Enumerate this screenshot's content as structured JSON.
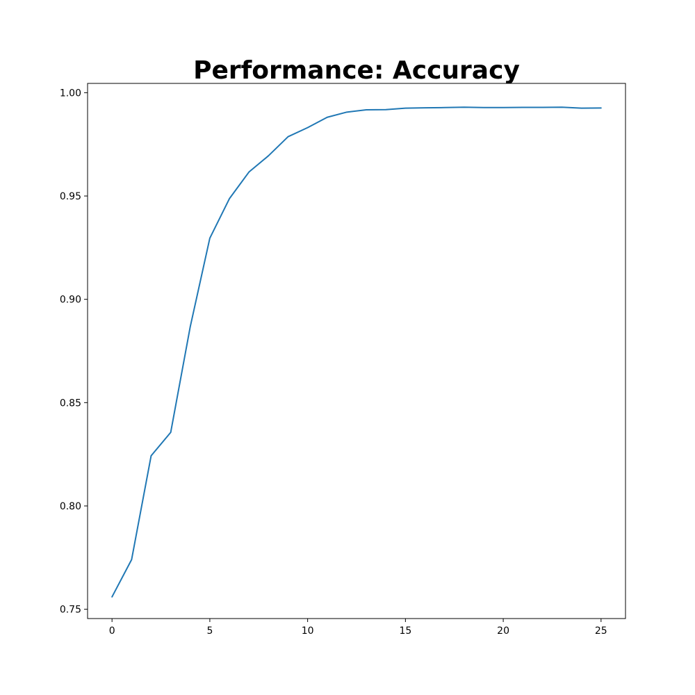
{
  "chart_data": {
    "type": "line",
    "title": "Performance: Accuracy",
    "xlabel": "",
    "ylabel": "",
    "xlim": [
      -1.25,
      26.25
    ],
    "ylim": [
      0.7455,
      1.0045
    ],
    "x_ticks": [
      0,
      5,
      10,
      15,
      20,
      25
    ],
    "x_tick_labels": [
      "0",
      "5",
      "10",
      "15",
      "20",
      "25"
    ],
    "y_ticks": [
      0.75,
      0.8,
      0.85,
      0.9,
      0.95,
      1.0
    ],
    "y_tick_labels": [
      "0.75",
      "0.80",
      "0.85",
      "0.90",
      "0.95",
      "1.00"
    ],
    "grid": false,
    "series": [
      {
        "color": "#1f77b4",
        "x": [
          0,
          1,
          2,
          3,
          4,
          5,
          6,
          7,
          8,
          9,
          10,
          11,
          12,
          13,
          14,
          15,
          16,
          17,
          18,
          19,
          20,
          21,
          22,
          23,
          24,
          25
        ],
        "values": [
          0.756,
          0.774,
          0.8243,
          0.8356,
          0.8868,
          0.9296,
          0.9487,
          0.9616,
          0.9695,
          0.9787,
          0.9831,
          0.9881,
          0.9906,
          0.9917,
          0.9918,
          0.9925,
          0.9927,
          0.9928,
          0.993,
          0.9928,
          0.9928,
          0.9929,
          0.9929,
          0.993,
          0.9925,
          0.9926
        ]
      }
    ]
  }
}
